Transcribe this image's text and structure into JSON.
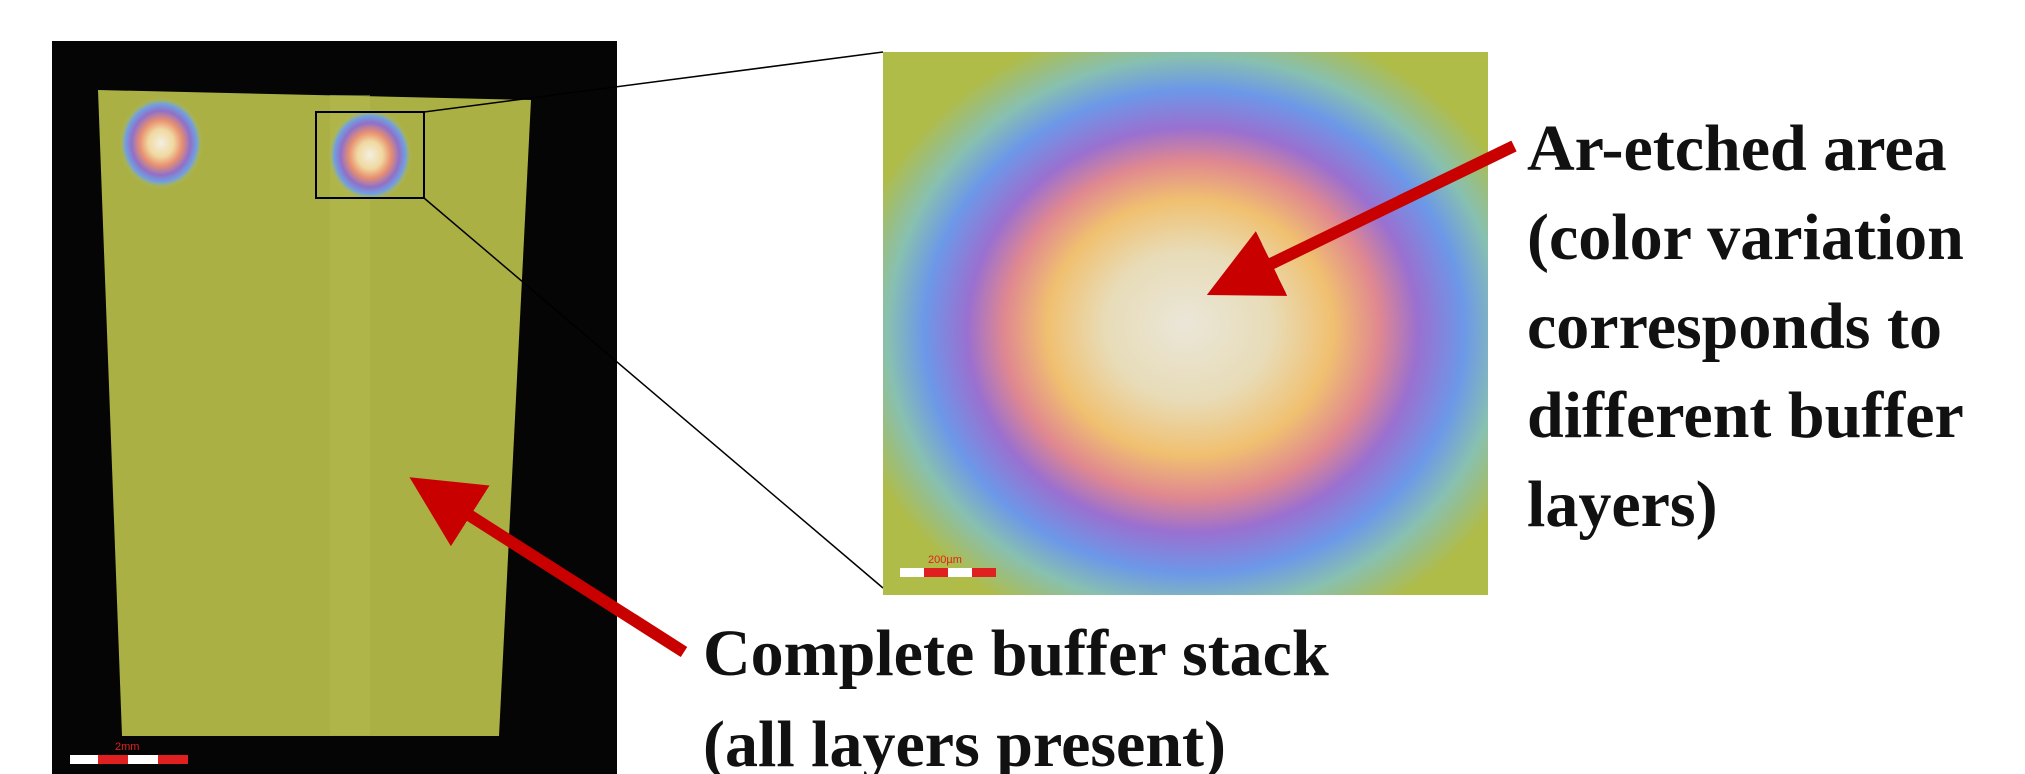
{
  "overview_image": {
    "scale_bar": "2mm"
  },
  "zoom_image": {
    "scale_bar": "200µm"
  },
  "callout_etched": {
    "lines": [
      "Ar-etched area",
      "(color variation",
      "corresponds to",
      "different buffer",
      "layers)"
    ]
  },
  "callout_stack": {
    "lines": [
      "Complete buffer stack",
      "(all layers present)"
    ]
  }
}
